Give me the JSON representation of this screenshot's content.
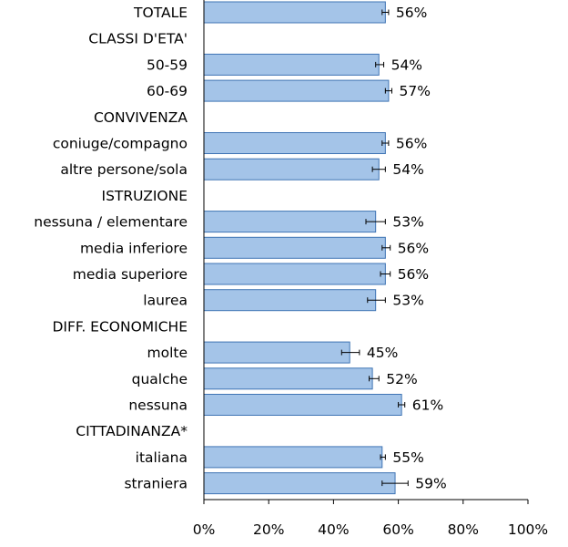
{
  "chart_data": {
    "type": "bar",
    "orientation": "horizontal",
    "xlim": [
      0,
      100
    ],
    "x_ticks": [
      "0%",
      "20%",
      "40%",
      "60%",
      "80%",
      "100%"
    ],
    "grid": false,
    "error_bars": true,
    "rows": [
      {
        "label": "TOTALE",
        "kind": "category",
        "value": 56,
        "error": [
          55,
          57
        ],
        "value_label": "56%"
      },
      {
        "label": "CLASSI D'ETA'",
        "kind": "header"
      },
      {
        "label": "50-59",
        "kind": "category",
        "value": 54,
        "error": [
          53,
          55.5
        ],
        "value_label": "54%"
      },
      {
        "label": "60-69",
        "kind": "category",
        "value": 57,
        "error": [
          56,
          58
        ],
        "value_label": "57%"
      },
      {
        "label": "CONVIVENZA",
        "kind": "header"
      },
      {
        "label": "coniuge/compagno",
        "kind": "category",
        "value": 56,
        "error": [
          55,
          57
        ],
        "value_label": "56%"
      },
      {
        "label": "altre persone/sola",
        "kind": "category",
        "value": 54,
        "error": [
          52,
          56
        ],
        "value_label": "54%"
      },
      {
        "label": "ISTRUZIONE",
        "kind": "header"
      },
      {
        "label": "nessuna / elementare",
        "kind": "category",
        "value": 53,
        "error": [
          50,
          56
        ],
        "value_label": "53%"
      },
      {
        "label": "media inferiore",
        "kind": "category",
        "value": 56,
        "error": [
          55,
          57.5
        ],
        "value_label": "56%"
      },
      {
        "label": "media superiore",
        "kind": "category",
        "value": 56,
        "error": [
          54.5,
          57.5
        ],
        "value_label": "56%"
      },
      {
        "label": "laurea",
        "kind": "category",
        "value": 53,
        "error": [
          50.5,
          56
        ],
        "value_label": "53%"
      },
      {
        "label": "DIFF. ECONOMICHE",
        "kind": "header"
      },
      {
        "label": "molte",
        "kind": "category",
        "value": 45,
        "error": [
          42.5,
          48
        ],
        "value_label": "45%"
      },
      {
        "label": "qualche",
        "kind": "category",
        "value": 52,
        "error": [
          51,
          54
        ],
        "value_label": "52%"
      },
      {
        "label": "nessuna",
        "kind": "category",
        "value": 61,
        "error": [
          60,
          62
        ],
        "value_label": "61%"
      },
      {
        "label": "CITTADINANZA*",
        "kind": "header"
      },
      {
        "label": "italiana",
        "kind": "category",
        "value": 55,
        "error": [
          54.5,
          56
        ],
        "value_label": "55%"
      },
      {
        "label": "straniera",
        "kind": "category",
        "value": 59,
        "error": [
          55,
          63
        ],
        "value_label": "59%"
      }
    ]
  },
  "colors": {
    "bar_fill": "#a4c4e8",
    "bar_stroke": "#3f74b4",
    "text": "#000000",
    "axis": "#000000"
  }
}
